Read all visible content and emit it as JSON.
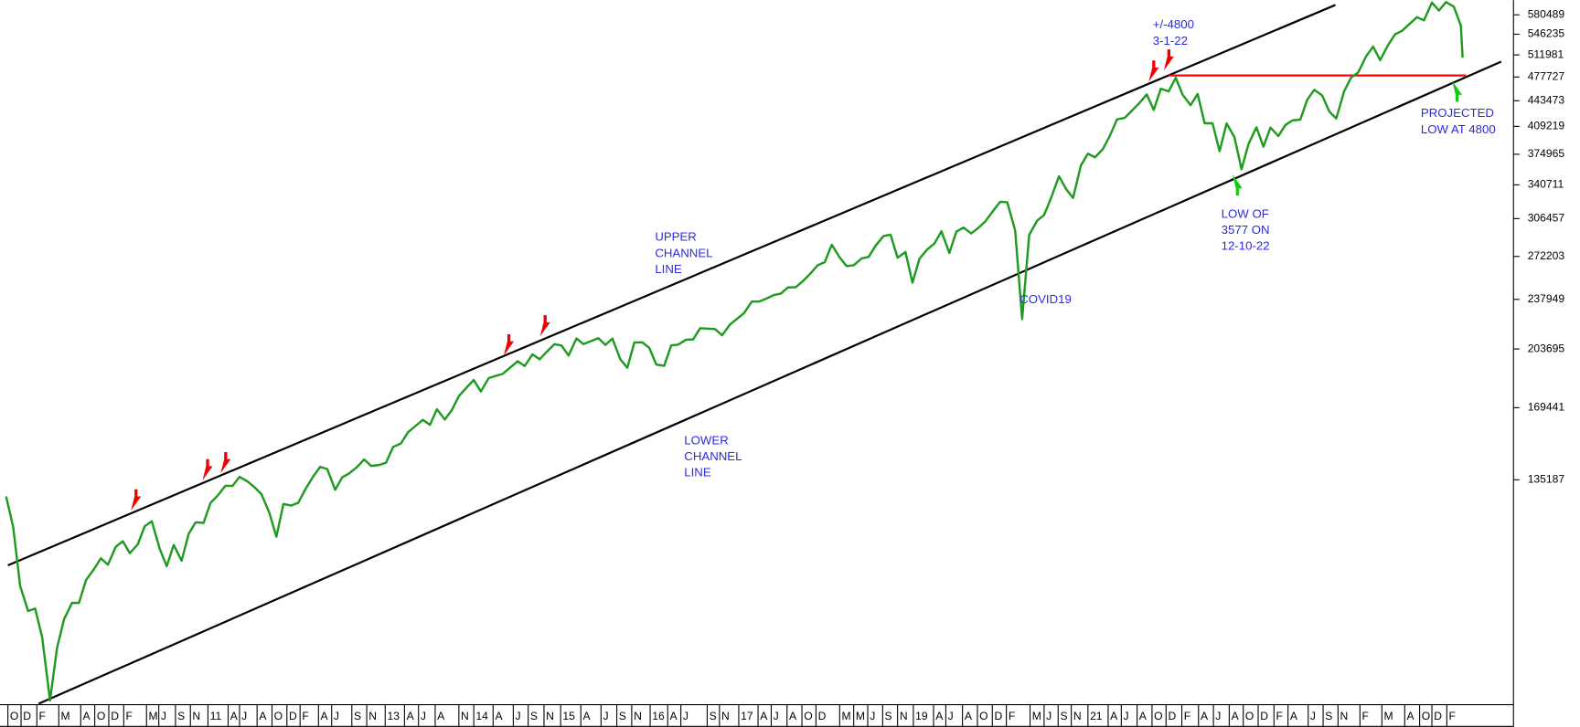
{
  "chart_data": {
    "type": "line",
    "log_scale": true,
    "xlim": [
      2008.6,
      2025.85
    ],
    "ylim": [
      66800,
      607800
    ],
    "yticks": [
      580489,
      546235,
      511981,
      477727,
      443473,
      409219,
      374965,
      340711,
      306457,
      272203,
      237949,
      203695,
      169441,
      135187
    ],
    "xticks": [
      {
        "value": 2008.69,
        "label": "O"
      },
      {
        "value": 2008.84,
        "label": "D"
      },
      {
        "value": 2009.02,
        "label": "F"
      },
      {
        "value": 2009.27,
        "label": "M"
      },
      {
        "value": 2009.52,
        "label": "A"
      },
      {
        "value": 2009.68,
        "label": "O"
      },
      {
        "value": 2009.84,
        "label": "D"
      },
      {
        "value": 2010.01,
        "label": "F"
      },
      {
        "value": 2010.27,
        "label": "M"
      },
      {
        "value": 2010.41,
        "label": "J"
      },
      {
        "value": 2010.6,
        "label": "S"
      },
      {
        "value": 2010.77,
        "label": "N"
      },
      {
        "value": 2010.97,
        "label": "11"
      },
      {
        "value": 2011.2,
        "label": "A"
      },
      {
        "value": 2011.33,
        "label": "J"
      },
      {
        "value": 2011.53,
        "label": "A"
      },
      {
        "value": 2011.7,
        "label": "O"
      },
      {
        "value": 2011.87,
        "label": "D"
      },
      {
        "value": 2012.02,
        "label": "F"
      },
      {
        "value": 2012.23,
        "label": "A"
      },
      {
        "value": 2012.38,
        "label": "J"
      },
      {
        "value": 2012.61,
        "label": "S"
      },
      {
        "value": 2012.78,
        "label": "N"
      },
      {
        "value": 2012.99,
        "label": "13"
      },
      {
        "value": 2013.21,
        "label": "A"
      },
      {
        "value": 2013.37,
        "label": "J"
      },
      {
        "value": 2013.56,
        "label": "A"
      },
      {
        "value": 2013.83,
        "label": "N"
      },
      {
        "value": 2014.0,
        "label": "14"
      },
      {
        "value": 2014.22,
        "label": "A"
      },
      {
        "value": 2014.45,
        "label": "J"
      },
      {
        "value": 2014.62,
        "label": "S"
      },
      {
        "value": 2014.8,
        "label": "N"
      },
      {
        "value": 2014.99,
        "label": "15"
      },
      {
        "value": 2015.22,
        "label": "A"
      },
      {
        "value": 2015.45,
        "label": "J"
      },
      {
        "value": 2015.63,
        "label": "S"
      },
      {
        "value": 2015.8,
        "label": "N"
      },
      {
        "value": 2016.01,
        "label": "16"
      },
      {
        "value": 2016.21,
        "label": "A"
      },
      {
        "value": 2016.36,
        "label": "J"
      },
      {
        "value": 2016.66,
        "label": "S"
      },
      {
        "value": 2016.8,
        "label": "N"
      },
      {
        "value": 2017.02,
        "label": "17"
      },
      {
        "value": 2017.24,
        "label": "A"
      },
      {
        "value": 2017.39,
        "label": "J"
      },
      {
        "value": 2017.57,
        "label": "A"
      },
      {
        "value": 2017.74,
        "label": "O"
      },
      {
        "value": 2017.9,
        "label": "D"
      },
      {
        "value": 2018.17,
        "label": "M"
      },
      {
        "value": 2018.33,
        "label": "M"
      },
      {
        "value": 2018.49,
        "label": "J"
      },
      {
        "value": 2018.66,
        "label": "S"
      },
      {
        "value": 2018.83,
        "label": "N"
      },
      {
        "value": 2019.01,
        "label": "19"
      },
      {
        "value": 2019.24,
        "label": "A"
      },
      {
        "value": 2019.38,
        "label": "J"
      },
      {
        "value": 2019.57,
        "label": "A"
      },
      {
        "value": 2019.74,
        "label": "O"
      },
      {
        "value": 2019.91,
        "label": "D"
      },
      {
        "value": 2020.07,
        "label": "F"
      },
      {
        "value": 2020.34,
        "label": "M"
      },
      {
        "value": 2020.5,
        "label": "J"
      },
      {
        "value": 2020.66,
        "label": "S"
      },
      {
        "value": 2020.81,
        "label": "N"
      },
      {
        "value": 2021.0,
        "label": "21"
      },
      {
        "value": 2021.23,
        "label": "A"
      },
      {
        "value": 2021.38,
        "label": "J"
      },
      {
        "value": 2021.56,
        "label": "A"
      },
      {
        "value": 2021.73,
        "label": "O"
      },
      {
        "value": 2021.89,
        "label": "D"
      },
      {
        "value": 2022.07,
        "label": "F"
      },
      {
        "value": 2022.26,
        "label": "A"
      },
      {
        "value": 2022.43,
        "label": "J"
      },
      {
        "value": 2022.61,
        "label": "A"
      },
      {
        "value": 2022.77,
        "label": "O"
      },
      {
        "value": 2022.94,
        "label": "D"
      },
      {
        "value": 2023.12,
        "label": "F"
      },
      {
        "value": 2023.28,
        "label": "A"
      },
      {
        "value": 2023.51,
        "label": "J"
      },
      {
        "value": 2023.68,
        "label": "S"
      },
      {
        "value": 2023.85,
        "label": "N"
      },
      {
        "value": 2024.1,
        "label": "F"
      },
      {
        "value": 2024.35,
        "label": "M"
      },
      {
        "value": 2024.61,
        "label": "A"
      },
      {
        "value": 2024.78,
        "label": "O"
      },
      {
        "value": 2024.92,
        "label": "D"
      },
      {
        "value": 2025.09,
        "label": "F"
      }
    ],
    "x": [
      2008.67,
      2008.75,
      2008.83,
      2008.92,
      2009.0,
      2009.08,
      2009.17,
      2009.25,
      2009.33,
      2009.42,
      2009.5,
      2009.58,
      2009.67,
      2009.75,
      2009.83,
      2009.92,
      2010.0,
      2010.08,
      2010.17,
      2010.25,
      2010.33,
      2010.42,
      2010.5,
      2010.58,
      2010.67,
      2010.75,
      2010.83,
      2010.92,
      2011.0,
      2011.08,
      2011.17,
      2011.25,
      2011.33,
      2011.42,
      2011.5,
      2011.58,
      2011.67,
      2011.75,
      2011.83,
      2011.92,
      2012.0,
      2012.08,
      2012.17,
      2012.25,
      2012.33,
      2012.42,
      2012.5,
      2012.58,
      2012.67,
      2012.75,
      2012.83,
      2012.92,
      2013.0,
      2013.08,
      2013.17,
      2013.25,
      2013.33,
      2013.42,
      2013.5,
      2013.58,
      2013.67,
      2013.75,
      2013.83,
      2013.92,
      2014.0,
      2014.08,
      2014.17,
      2014.25,
      2014.33,
      2014.42,
      2014.5,
      2014.58,
      2014.67,
      2014.75,
      2014.83,
      2014.92,
      2015.0,
      2015.08,
      2015.17,
      2015.25,
      2015.33,
      2015.42,
      2015.5,
      2015.58,
      2015.67,
      2015.75,
      2015.83,
      2015.92,
      2016.0,
      2016.08,
      2016.17,
      2016.25,
      2016.33,
      2016.42,
      2016.5,
      2016.58,
      2016.67,
      2016.75,
      2016.83,
      2016.92,
      2017.0,
      2017.08,
      2017.17,
      2017.25,
      2017.33,
      2017.42,
      2017.5,
      2017.58,
      2017.67,
      2017.75,
      2017.83,
      2017.92,
      2018.0,
      2018.08,
      2018.17,
      2018.25,
      2018.33,
      2018.42,
      2018.5,
      2018.58,
      2018.67,
      2018.75,
      2018.83,
      2018.92,
      2019.0,
      2019.08,
      2019.17,
      2019.25,
      2019.33,
      2019.42,
      2019.5,
      2019.58,
      2019.67,
      2019.75,
      2019.83,
      2019.92,
      2020.0,
      2020.08,
      2020.17,
      2020.25,
      2020.33,
      2020.42,
      2020.5,
      2020.58,
      2020.67,
      2020.75,
      2020.83,
      2020.92,
      2021.0,
      2021.08,
      2021.17,
      2021.25,
      2021.33,
      2021.42,
      2021.5,
      2021.58,
      2021.67,
      2021.75,
      2021.83,
      2021.92,
      2022.0,
      2022.08,
      2022.17,
      2022.25,
      2022.33,
      2022.42,
      2022.5,
      2022.58,
      2022.67,
      2022.75,
      2022.83,
      2022.92,
      2023.0,
      2023.08,
      2023.17,
      2023.25,
      2023.33,
      2023.42,
      2023.5,
      2023.58,
      2023.67,
      2023.75,
      2023.83,
      2023.92,
      2024.0,
      2024.08,
      2024.17,
      2024.25,
      2024.33,
      2024.42,
      2024.5,
      2024.58,
      2024.67,
      2024.75,
      2024.83,
      2024.92,
      2025.0,
      2025.08,
      2025.17,
      2025.25,
      2025.27
    ],
    "series": [
      {
        "color": "#1e9a1e",
        "values": [
          128300,
          116600,
          96900,
          89600,
          90300,
          82600,
          67700,
          79800,
          87300,
          91900,
          91900,
          98700,
          102100,
          105700,
          103600,
          109600,
          111500,
          107400,
          110400,
          116900,
          118700,
          108900,
          103100,
          110200,
          104900,
          114100,
          118300,
          118100,
          125800,
          128600,
          132700,
          132600,
          136400,
          134500,
          132100,
          129200,
          121900,
          113100,
          125300,
          124700,
          125800,
          131200,
          136600,
          140800,
          139800,
          131000,
          136200,
          137900,
          140700,
          144100,
          141200,
          141600,
          142600,
          149800,
          151500,
          156900,
          159800,
          163100,
          160600,
          168600,
          163300,
          168200,
          175700,
          180600,
          184800,
          178300,
          185900,
          187200,
          188400,
          192400,
          196000,
          193100,
          200300,
          197200,
          201800,
          206800,
          205900,
          199500,
          210500,
          206800,
          208600,
          210700,
          206300,
          210400,
          197200,
          192000,
          207900,
          208000,
          204400,
          194000,
          193200,
          206000,
          206500,
          209700,
          209900,
          217400,
          217100,
          216800,
          212600,
          219900,
          223900,
          227900,
          236400,
          236300,
          238400,
          241200,
          242300,
          247000,
          247200,
          251900,
          257500,
          264800,
          267400,
          282400,
          271400,
          264100,
          264800,
          270500,
          271800,
          281600,
          290200,
          291400,
          271200,
          276000,
          250700,
          270400,
          278400,
          283400,
          294600,
          275200,
          294200,
          298000,
          292600,
          297700,
          303800,
          314100,
          323100,
          322600,
          295400,
          223700,
          291200,
          304400,
          310000,
          327100,
          350000,
          336300,
          327000,
          362200,
          375600,
          371400,
          381100,
          397300,
          418100,
          420400,
          429800,
          439500,
          452300,
          430800,
          460500,
          456700,
          476600,
          451600,
          437400,
          453000,
          413200,
          413200,
          378500,
          413000,
          395500,
          357700,
          387200,
          408000,
          384000,
          407700,
          397000,
          410900,
          416900,
          418000,
          445000,
          458900,
          450800,
          428800,
          419400,
          456800,
          477000,
          484600,
          509600,
          525400,
          503600,
          527800,
          546000,
          552200,
          564800,
          576200,
          570500,
          603200,
          588200,
          604100,
          595500,
          561200,
          507400
        ]
      }
    ],
    "reference_lines": [
      {
        "x": [
          2008.69,
          2023.82
        ],
        "y": [
          103400,
          598700
        ],
        "color": "#000000"
      },
      {
        "x": [
          2009.04,
          2025.71
        ],
        "y": [
          67000,
          501300
        ],
        "color": "#000000"
      },
      {
        "x": [
          2021.92,
          2025.31
        ],
        "y": [
          480000,
          480000
        ],
        "color": "#ff0000"
      }
    ],
    "annotations": [
      {
        "lines": [
          "+/-4800",
          "3-1-22"
        ]
      },
      {
        "lines": [
          "UPPER",
          "CHANNEL",
          "LINE"
        ]
      },
      {
        "lines": [
          "LOWER",
          "CHANNEL",
          "LINE"
        ]
      },
      {
        "lines": [
          "COVID19"
        ]
      },
      {
        "lines": [
          "LOW OF",
          "3577 ON",
          "12-10-22"
        ]
      },
      {
        "lines": [
          "PROJECTED",
          "LOW AT 4800"
        ]
      }
    ]
  }
}
